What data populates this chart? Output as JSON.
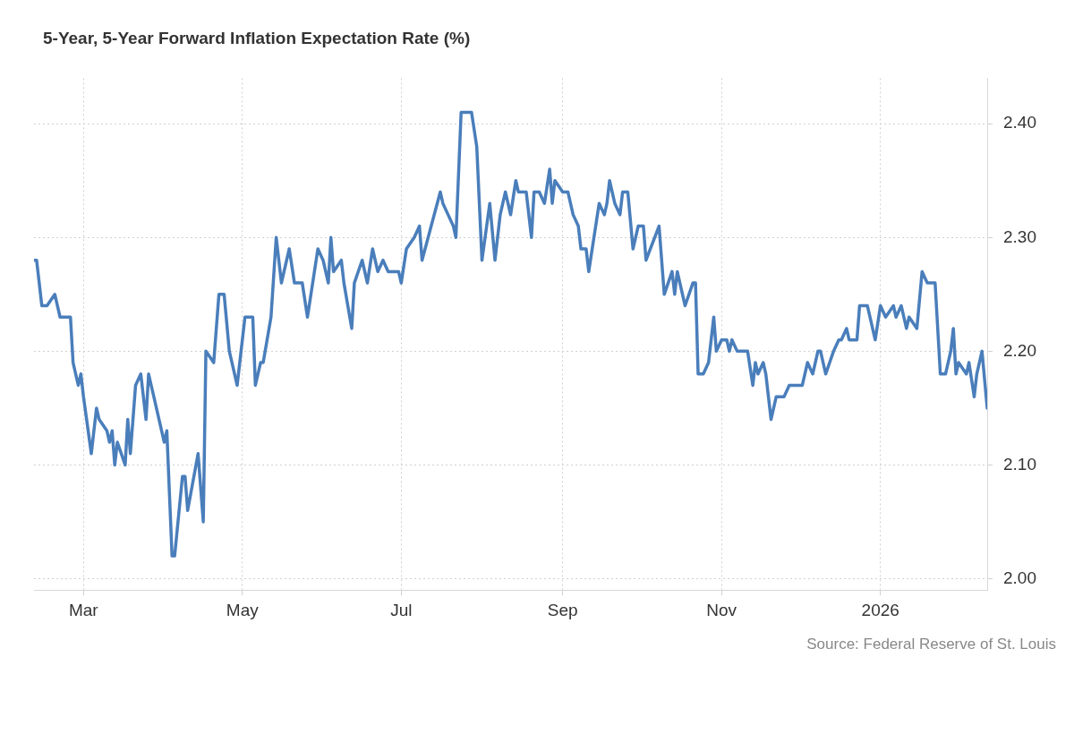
{
  "chart_data": {
    "type": "line",
    "title": "5-Year, 5-Year Forward Inflation Expectation Rate (%)",
    "annotations": [
      "Source: Federal Reserve of St. Louis"
    ],
    "x": [
      "2025-02-10",
      "2025-02-11",
      "2025-02-13",
      "2025-02-15",
      "2025-02-18",
      "2025-02-19",
      "2025-02-20",
      "2025-02-24",
      "2025-02-25",
      "2025-02-27",
      "2025-02-28",
      "2025-03-01",
      "2025-03-04",
      "2025-03-06",
      "2025-03-07",
      "2025-03-10",
      "2025-03-11",
      "2025-03-12",
      "2025-03-13",
      "2025-03-14",
      "2025-03-17",
      "2025-03-18",
      "2025-03-19",
      "2025-03-21",
      "2025-03-23",
      "2025-03-25",
      "2025-03-26",
      "2025-03-28",
      "2025-04-01",
      "2025-04-02",
      "2025-04-04",
      "2025-04-05",
      "2025-04-08",
      "2025-04-09",
      "2025-04-10",
      "2025-04-14",
      "2025-04-16",
      "2025-04-17",
      "2025-04-20",
      "2025-04-22",
      "2025-04-24",
      "2025-04-26",
      "2025-04-29",
      "2025-05-02",
      "2025-05-05",
      "2025-05-06",
      "2025-05-08",
      "2025-05-09",
      "2025-05-12",
      "2025-05-14",
      "2025-05-16",
      "2025-05-19",
      "2025-05-21",
      "2025-05-24",
      "2025-05-26",
      "2025-05-30",
      "2025-06-01",
      "2025-06-03",
      "2025-06-04",
      "2025-06-05",
      "2025-06-08",
      "2025-06-09",
      "2025-06-12",
      "2025-06-13",
      "2025-06-16",
      "2025-06-18",
      "2025-06-20",
      "2025-06-22",
      "2025-06-24",
      "2025-06-26",
      "2025-06-30",
      "2025-07-01",
      "2025-07-03",
      "2025-07-06",
      "2025-07-08",
      "2025-07-09",
      "2025-07-16",
      "2025-07-17",
      "2025-07-19",
      "2025-07-21",
      "2025-07-22",
      "2025-07-24",
      "2025-07-28",
      "2025-07-30",
      "2025-08-01",
      "2025-08-04",
      "2025-08-06",
      "2025-08-08",
      "2025-08-10",
      "2025-08-12",
      "2025-08-14",
      "2025-08-15",
      "2025-08-18",
      "2025-08-20",
      "2025-08-21",
      "2025-08-23",
      "2025-08-25",
      "2025-08-27",
      "2025-08-28",
      "2025-08-29",
      "2025-09-01",
      "2025-09-03",
      "2025-09-05",
      "2025-09-07",
      "2025-09-08",
      "2025-09-10",
      "2025-09-11",
      "2025-09-13",
      "2025-09-15",
      "2025-09-17",
      "2025-09-18",
      "2025-09-19",
      "2025-09-21",
      "2025-09-23",
      "2025-09-24",
      "2025-09-26",
      "2025-09-28",
      "2025-09-30",
      "2025-10-02",
      "2025-10-03",
      "2025-10-08",
      "2025-10-10",
      "2025-10-13",
      "2025-10-14",
      "2025-10-15",
      "2025-10-18",
      "2025-10-21",
      "2025-10-22",
      "2025-10-23",
      "2025-10-25",
      "2025-10-27",
      "2025-10-29",
      "2025-10-30",
      "2025-11-01",
      "2025-11-03",
      "2025-11-04",
      "2025-11-05",
      "2025-11-07",
      "2025-11-11",
      "2025-11-13",
      "2025-11-14",
      "2025-11-15",
      "2025-11-17",
      "2025-11-18",
      "2025-11-20",
      "2025-11-22",
      "2025-11-25",
      "2025-11-27",
      "2025-12-02",
      "2025-12-04",
      "2025-12-06",
      "2025-12-08",
      "2025-12-09",
      "2025-12-11",
      "2025-12-14",
      "2025-12-16",
      "2025-12-17",
      "2025-12-19",
      "2025-12-20",
      "2025-12-23",
      "2025-12-24",
      "2025-12-27",
      "2025-12-30",
      "2026-01-01",
      "2026-01-03",
      "2026-01-06",
      "2026-01-07",
      "2026-01-09",
      "2026-01-11",
      "2026-01-12",
      "2026-01-15",
      "2026-01-17",
      "2026-01-19",
      "2026-01-22",
      "2026-01-24",
      "2026-01-26",
      "2026-01-28",
      "2026-01-29",
      "2026-01-30",
      "2026-01-31",
      "2026-02-03",
      "2026-02-04",
      "2026-02-06",
      "2026-02-07",
      "2026-02-09",
      "2026-02-11"
    ],
    "series": [
      {
        "color": "#4a7ebb",
        "values": [
          2.28,
          2.28,
          2.24,
          2.24,
          2.25,
          2.24,
          2.23,
          2.23,
          2.19,
          2.17,
          2.18,
          2.16,
          2.11,
          2.15,
          2.14,
          2.13,
          2.12,
          2.13,
          2.1,
          2.12,
          2.1,
          2.14,
          2.11,
          2.17,
          2.18,
          2.14,
          2.18,
          2.16,
          2.12,
          2.13,
          2.02,
          2.02,
          2.09,
          2.09,
          2.06,
          2.11,
          2.05,
          2.2,
          2.19,
          2.25,
          2.25,
          2.2,
          2.17,
          2.23,
          2.23,
          2.17,
          2.19,
          2.19,
          2.23,
          2.3,
          2.26,
          2.29,
          2.26,
          2.26,
          2.23,
          2.29,
          2.28,
          2.26,
          2.3,
          2.27,
          2.28,
          2.26,
          2.22,
          2.26,
          2.28,
          2.26,
          2.29,
          2.27,
          2.28,
          2.27,
          2.27,
          2.26,
          2.29,
          2.3,
          2.31,
          2.28,
          2.34,
          2.33,
          2.32,
          2.31,
          2.3,
          2.41,
          2.41,
          2.38,
          2.28,
          2.33,
          2.28,
          2.32,
          2.34,
          2.32,
          2.35,
          2.34,
          2.34,
          2.3,
          2.34,
          2.34,
          2.33,
          2.36,
          2.33,
          2.35,
          2.34,
          2.34,
          2.32,
          2.31,
          2.29,
          2.29,
          2.27,
          2.3,
          2.33,
          2.32,
          2.33,
          2.35,
          2.33,
          2.32,
          2.34,
          2.34,
          2.29,
          2.31,
          2.31,
          2.28,
          2.31,
          2.25,
          2.27,
          2.25,
          2.27,
          2.24,
          2.26,
          2.26,
          2.18,
          2.18,
          2.19,
          2.23,
          2.2,
          2.21,
          2.21,
          2.2,
          2.21,
          2.2,
          2.2,
          2.17,
          2.19,
          2.18,
          2.19,
          2.18,
          2.14,
          2.16,
          2.16,
          2.17,
          2.17,
          2.19,
          2.18,
          2.2,
          2.2,
          2.18,
          2.2,
          2.21,
          2.21,
          2.22,
          2.21,
          2.21,
          2.24,
          2.24,
          2.21,
          2.24,
          2.23,
          2.24,
          2.23,
          2.24,
          2.22,
          2.23,
          2.22,
          2.27,
          2.26,
          2.26,
          2.18,
          2.18,
          2.2,
          2.22,
          2.18,
          2.19,
          2.18,
          2.19,
          2.16,
          2.18,
          2.2,
          2.15
        ]
      }
    ],
    "xlim": [
      "2025-02-10",
      "2026-02-11"
    ],
    "xticks": [
      {
        "value": "2025-03-01",
        "label": "Mar"
      },
      {
        "value": "2025-05-01",
        "label": "May"
      },
      {
        "value": "2025-07-01",
        "label": "Jul"
      },
      {
        "value": "2025-09-01",
        "label": "Sep"
      },
      {
        "value": "2025-11-01",
        "label": "Nov"
      },
      {
        "value": "2026-01-01",
        "label": "2026"
      }
    ],
    "ylim": [
      1.99,
      2.44
    ],
    "yticks": [
      {
        "value": 2,
        "label": "2.00"
      },
      {
        "value": 2.1,
        "label": "2.10"
      },
      {
        "value": 2.2,
        "label": "2.20"
      },
      {
        "value": 2.3,
        "label": "2.30"
      },
      {
        "value": 2.4,
        "label": "2.40"
      }
    ],
    "grid": true,
    "legend": false,
    "marker": "none",
    "line_style": "solid"
  }
}
